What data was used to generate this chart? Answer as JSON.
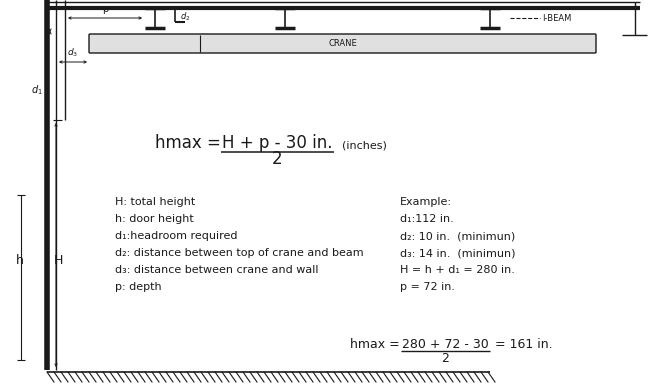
{
  "bg_color": "#ffffff",
  "line_color": "#1a1a1a",
  "definitions": [
    "H: total height",
    "h: door height",
    "d₁:headroom required",
    "d₂: distance between top of crane and beam",
    "d₃: distance between crane and wall",
    "p: depth"
  ],
  "example_title": "Example:",
  "example_lines": [
    "d₁:112 in.",
    "d₂: 10 in.  (minimun)",
    "d₃: 14 in.  (minimun)",
    "H = h + d₁ = 280 in.",
    "p = 72 in."
  ],
  "example_formula_num": "280 + 72 - 30",
  "example_formula_result": "= 161 in."
}
